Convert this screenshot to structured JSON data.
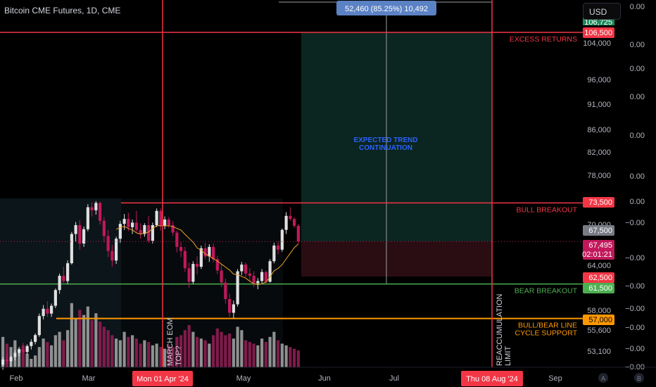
{
  "header": {
    "symbol_title": "Bitcoin CME Futures, 1D, CME"
  },
  "currency_button": {
    "label": "USD"
  },
  "top_badge": {
    "label": "52,460 (85.25%) 10,492"
  },
  "scale_mode": {
    "auto_label": "A",
    "bottom_label": "B"
  },
  "chart_data": {
    "type": "candlestick",
    "title": "Bitcoin CME Futures, 1D, CME",
    "ylim": [
      52000,
      110000
    ],
    "x_ticks": [
      "Feb",
      "Mar",
      "Mon 01 Apr '24",
      "May",
      "Jun",
      "Jul",
      "Thu 08 Aug '24",
      "Sep"
    ],
    "y_ticks": [
      53100,
      55600,
      58000,
      64000,
      70000,
      78000,
      82000,
      86000,
      91000,
      96000,
      104000
    ],
    "far_right_ticks": [
      "0.00",
      "0.00",
      "0.00",
      "0.00",
      "0.00",
      "0.00",
      "0.00",
      "−0.00",
      "−0.00",
      "−0.00",
      "−0.00",
      "−0.00",
      "−0.00",
      "−0.00",
      "−0.00",
      "−0.00"
    ],
    "price_labels": [
      {
        "value": 106500,
        "label": "106,500",
        "color": "#f23645"
      },
      {
        "value": 73500,
        "label": "73,500",
        "color": "#f23645"
      },
      {
        "value": 67500,
        "label": "67,500",
        "color": "#787b86"
      },
      {
        "value": 67495,
        "label": "67,495",
        "sub": "02:01:21",
        "color": "#c2185b"
      },
      {
        "value": 62500,
        "label": "62,500",
        "color": "#f23645"
      },
      {
        "value": 61500,
        "label": "61,500",
        "color": "#4caf50"
      },
      {
        "value": 57000,
        "label": "57,000",
        "color": "#ff9800"
      }
    ],
    "partial_top_label": "106,725",
    "levels": [
      {
        "value": 106500,
        "label": "EXCESS RETURNS",
        "color": "#f23645"
      },
      {
        "value": 73500,
        "label": "BULL BREAKOUT",
        "color": "#f23645"
      },
      {
        "value": 61500,
        "label": "BEAR BREAKOUT",
        "color": "#4caf50"
      },
      {
        "value": 57000,
        "label": "BULL/BEAR LINE",
        "label2": "CYCLE SUPPORT",
        "color": "#ff9800"
      }
    ],
    "vertical_markers": [
      {
        "date": "Mon 01 Apr '24",
        "label": "MARCH EOM",
        "label2": "TOP?"
      },
      {
        "date": "Thu 08 Aug '24",
        "label": "REACCUMULATION",
        "label2": "LIMIT"
      }
    ],
    "projection": {
      "label_line1": "EXPECTED TREND",
      "label_line2": "CONTINUATION",
      "entry": 67495,
      "target": 106500,
      "stop": 62500
    },
    "candles": [
      {
        "o": 51500,
        "h": 52400,
        "l": 50900,
        "c": 52100
      },
      {
        "o": 52100,
        "h": 52800,
        "l": 51600,
        "c": 51900
      },
      {
        "o": 51900,
        "h": 52600,
        "l": 51200,
        "c": 52400
      },
      {
        "o": 52400,
        "h": 53200,
        "l": 52000,
        "c": 52900
      },
      {
        "o": 52900,
        "h": 53600,
        "l": 52500,
        "c": 53300
      },
      {
        "o": 53300,
        "h": 54100,
        "l": 52900,
        "c": 53000
      },
      {
        "o": 53000,
        "h": 53900,
        "l": 52700,
        "c": 53700
      },
      {
        "o": 53700,
        "h": 54500,
        "l": 53300,
        "c": 54200
      },
      {
        "o": 54200,
        "h": 55200,
        "l": 53900,
        "c": 55000
      },
      {
        "o": 55000,
        "h": 57600,
        "l": 54800,
        "c": 57300
      },
      {
        "o": 57300,
        "h": 58700,
        "l": 56900,
        "c": 58200
      },
      {
        "o": 58200,
        "h": 59200,
        "l": 57200,
        "c": 57600
      },
      {
        "o": 57600,
        "h": 58900,
        "l": 57200,
        "c": 58600
      },
      {
        "o": 58600,
        "h": 60900,
        "l": 58300,
        "c": 60700
      },
      {
        "o": 60700,
        "h": 62900,
        "l": 60200,
        "c": 62600
      },
      {
        "o": 62600,
        "h": 63800,
        "l": 61400,
        "c": 61900
      },
      {
        "o": 61900,
        "h": 64700,
        "l": 61500,
        "c": 64300
      },
      {
        "o": 64300,
        "h": 68900,
        "l": 64100,
        "c": 68600
      },
      {
        "o": 68600,
        "h": 70400,
        "l": 67500,
        "c": 69900
      },
      {
        "o": 69900,
        "h": 70700,
        "l": 66300,
        "c": 67200
      },
      {
        "o": 67200,
        "h": 69700,
        "l": 66700,
        "c": 69300
      },
      {
        "o": 69300,
        "h": 73300,
        "l": 69000,
        "c": 72800
      },
      {
        "o": 72800,
        "h": 73600,
        "l": 71300,
        "c": 72300
      },
      {
        "o": 72300,
        "h": 73800,
        "l": 71600,
        "c": 73500
      },
      {
        "o": 73500,
        "h": 73700,
        "l": 70000,
        "c": 70600
      },
      {
        "o": 70600,
        "h": 71200,
        "l": 67400,
        "c": 68300
      },
      {
        "o": 68300,
        "h": 69200,
        "l": 65200,
        "c": 66100
      },
      {
        "o": 66100,
        "h": 67000,
        "l": 63800,
        "c": 64700
      },
      {
        "o": 64700,
        "h": 68200,
        "l": 64200,
        "c": 67900
      },
      {
        "o": 67900,
        "h": 70600,
        "l": 67300,
        "c": 70100
      },
      {
        "o": 70100,
        "h": 71700,
        "l": 69200,
        "c": 70900
      },
      {
        "o": 70900,
        "h": 71900,
        "l": 69000,
        "c": 69600
      },
      {
        "o": 69600,
        "h": 70800,
        "l": 68600,
        "c": 70300
      },
      {
        "o": 70300,
        "h": 72200,
        "l": 68900,
        "c": 69200
      },
      {
        "o": 69200,
        "h": 70200,
        "l": 67900,
        "c": 68600
      },
      {
        "o": 68600,
        "h": 70200,
        "l": 68200,
        "c": 69900
      },
      {
        "o": 69900,
        "h": 71400,
        "l": 67300,
        "c": 67600
      },
      {
        "o": 67600,
        "h": 70300,
        "l": 67200,
        "c": 69900
      },
      {
        "o": 69900,
        "h": 72600,
        "l": 69600,
        "c": 72200
      },
      {
        "o": 72200,
        "h": 72600,
        "l": 69100,
        "c": 69800
      },
      {
        "o": 69800,
        "h": 71300,
        "l": 69300,
        "c": 70800
      },
      {
        "o": 70800,
        "h": 71200,
        "l": 69500,
        "c": 69900
      },
      {
        "o": 69900,
        "h": 70500,
        "l": 68300,
        "c": 68800
      },
      {
        "o": 68800,
        "h": 69100,
        "l": 65900,
        "c": 66700
      },
      {
        "o": 66700,
        "h": 67400,
        "l": 65200,
        "c": 66100
      },
      {
        "o": 66100,
        "h": 66700,
        "l": 63100,
        "c": 63600
      },
      {
        "o": 63600,
        "h": 64400,
        "l": 61000,
        "c": 61800
      },
      {
        "o": 61800,
        "h": 64600,
        "l": 61500,
        "c": 64200
      },
      {
        "o": 64200,
        "h": 65300,
        "l": 62800,
        "c": 63800
      },
      {
        "o": 63800,
        "h": 66900,
        "l": 63500,
        "c": 66500
      },
      {
        "o": 66500,
        "h": 67300,
        "l": 64900,
        "c": 65300
      },
      {
        "o": 65300,
        "h": 67100,
        "l": 64500,
        "c": 66700
      },
      {
        "o": 66700,
        "h": 67200,
        "l": 64400,
        "c": 64900
      },
      {
        "o": 64900,
        "h": 65400,
        "l": 62800,
        "c": 63300
      },
      {
        "o": 63300,
        "h": 64100,
        "l": 61100,
        "c": 61700
      },
      {
        "o": 61700,
        "h": 62200,
        "l": 58900,
        "c": 59500
      },
      {
        "o": 59500,
        "h": 60200,
        "l": 57200,
        "c": 57700
      },
      {
        "o": 57700,
        "h": 59300,
        "l": 57000,
        "c": 58800
      },
      {
        "o": 58800,
        "h": 63500,
        "l": 58500,
        "c": 63200
      },
      {
        "o": 63200,
        "h": 64500,
        "l": 62700,
        "c": 64100
      },
      {
        "o": 64100,
        "h": 64400,
        "l": 62400,
        "c": 62900
      },
      {
        "o": 62900,
        "h": 63600,
        "l": 61900,
        "c": 62600
      },
      {
        "o": 62600,
        "h": 63200,
        "l": 61100,
        "c": 61600
      },
      {
        "o": 61600,
        "h": 62300,
        "l": 60800,
        "c": 61900
      },
      {
        "o": 61900,
        "h": 63500,
        "l": 61600,
        "c": 63100
      },
      {
        "o": 63100,
        "h": 63300,
        "l": 61500,
        "c": 61800
      },
      {
        "o": 61800,
        "h": 64900,
        "l": 61700,
        "c": 64600
      },
      {
        "o": 64600,
        "h": 67300,
        "l": 64300,
        "c": 66900
      },
      {
        "o": 66900,
        "h": 67500,
        "l": 65600,
        "c": 66300
      },
      {
        "o": 66300,
        "h": 69400,
        "l": 66000,
        "c": 69200
      },
      {
        "o": 69200,
        "h": 72000,
        "l": 68600,
        "c": 71400
      },
      {
        "o": 71400,
        "h": 72800,
        "l": 70600,
        "c": 70900
      },
      {
        "o": 70900,
        "h": 71200,
        "l": 69500,
        "c": 69800
      },
      {
        "o": 69800,
        "h": 70100,
        "l": 67200,
        "c": 67495
      }
    ],
    "volumes": [
      18,
      14,
      12,
      16,
      11,
      13,
      8,
      5,
      7,
      12,
      17,
      15,
      13,
      19,
      21,
      16,
      22,
      38,
      29,
      34,
      31,
      36,
      28,
      32,
      27,
      24,
      22,
      19,
      17,
      16,
      21,
      18,
      19,
      17,
      14,
      16,
      15,
      13,
      14,
      12,
      11,
      13,
      12,
      18,
      19,
      22,
      25,
      21,
      18,
      17,
      16,
      14,
      19,
      23,
      21,
      19,
      20,
      17,
      24,
      22,
      16,
      15,
      14,
      13,
      17,
      15,
      18,
      21,
      16,
      14,
      13,
      12,
      11,
      10
    ]
  }
}
